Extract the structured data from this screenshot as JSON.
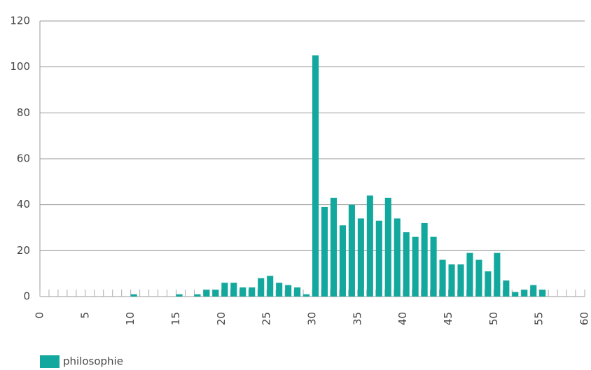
{
  "chart_data": {
    "type": "bar",
    "x": [
      10,
      15,
      17,
      18,
      19,
      20,
      21,
      22,
      23,
      24,
      25,
      26,
      27,
      28,
      29,
      30,
      31,
      32,
      33,
      34,
      35,
      36,
      37,
      38,
      39,
      40,
      41,
      42,
      43,
      44,
      45,
      46,
      47,
      48,
      49,
      50,
      51,
      52,
      53,
      54,
      55
    ],
    "series": [
      {
        "name": "philosophie",
        "color": "#12a89d",
        "values": [
          1,
          1,
          1,
          3,
          3,
          6,
          6,
          4,
          4,
          8,
          9,
          6,
          5,
          4,
          1,
          105,
          39,
          43,
          31,
          40,
          34,
          44,
          33,
          43,
          34,
          28,
          26,
          32,
          26,
          16,
          14,
          14,
          19,
          16,
          11,
          19,
          7,
          2,
          3,
          5,
          3
        ]
      }
    ],
    "xlim": [
      0,
      60
    ],
    "xticks": [
      0,
      5,
      10,
      15,
      20,
      25,
      30,
      35,
      40,
      45,
      50,
      55,
      60
    ],
    "ylim": [
      0,
      120
    ],
    "yticks": [
      0,
      20,
      40,
      60,
      80,
      100,
      120
    ],
    "grid": true,
    "legend": "bottom-left"
  }
}
